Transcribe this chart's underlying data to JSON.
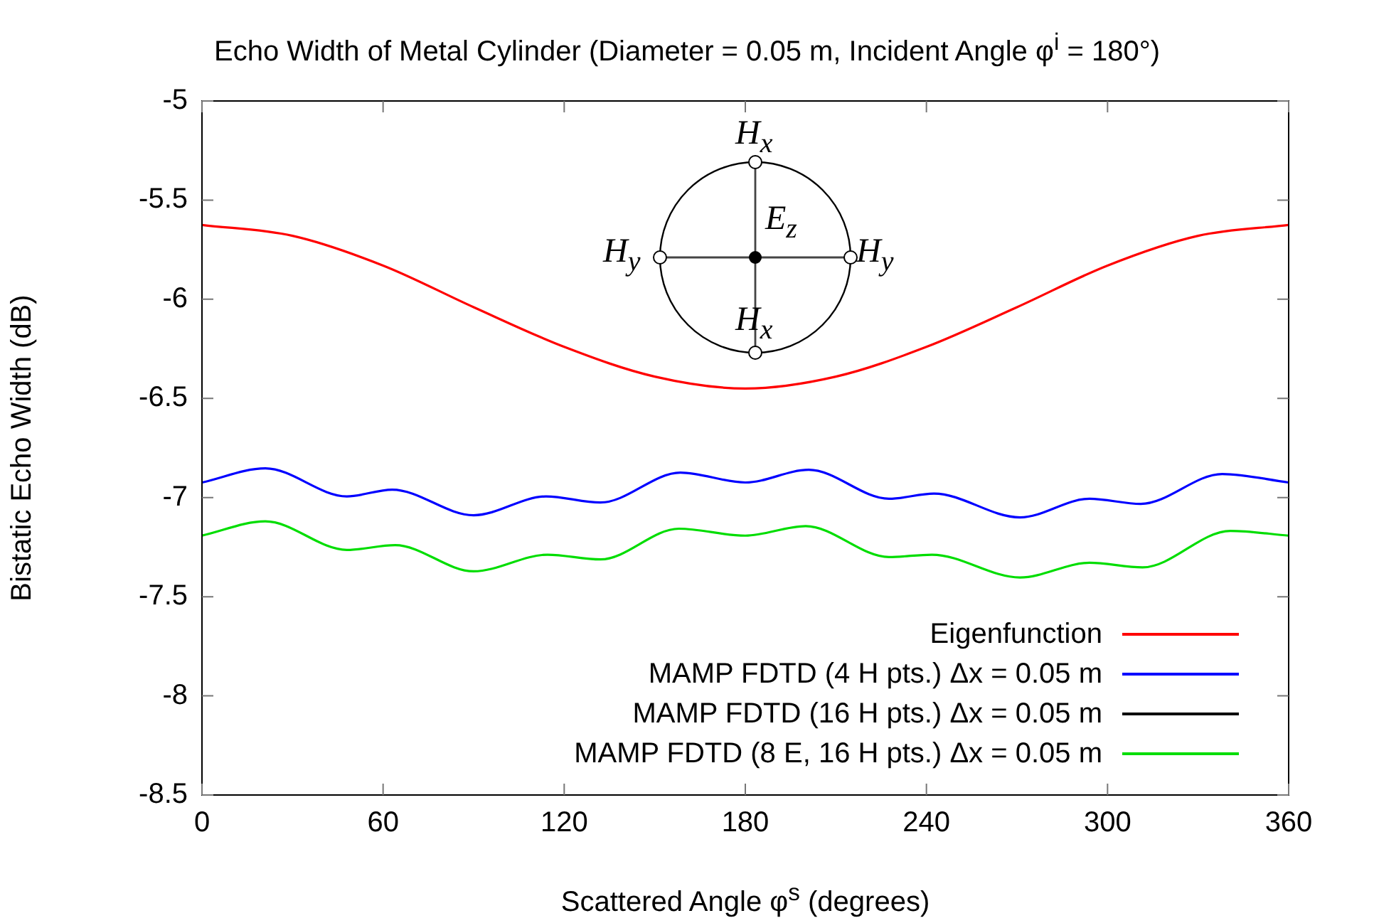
{
  "chart_data": {
    "type": "line",
    "title": "Echo Width of Metal Cylinder (Diameter = 0.05 m, Incident Angle φ$^{i}$ = 180°)",
    "xlabel": "Scattered Angle φ$^{s}$ (degrees)",
    "ylabel": "Bistatic Echo Width (dB)",
    "xlim": [
      0,
      360
    ],
    "xticks": [
      0,
      60,
      120,
      180,
      240,
      300,
      360
    ],
    "ylim": [
      -8.5,
      -5
    ],
    "yticks": [
      -8.5,
      -8,
      -7.5,
      -7,
      -6.5,
      -6,
      -5.5,
      -5
    ],
    "grid": false,
    "legend": "bottom right",
    "marker": "none",
    "line_style": "solid",
    "annotations": [
      "H$_{x}$",
      "H$_{y}$",
      "E$_{z}$",
      "H$_{y}$",
      "H$_{x}$"
    ],
    "series": [
      {
        "name": "Eigenfunction",
        "color": "#ff0000",
        "x": [
          0,
          30,
          60,
          90,
          120,
          150,
          180,
          210,
          240,
          270,
          300,
          330,
          360
        ],
        "values": [
          -5.625,
          -5.68,
          -5.83,
          -6.04,
          -6.24,
          -6.39,
          -6.45,
          -6.39,
          -6.24,
          -6.04,
          -5.83,
          -5.68,
          -5.625
        ]
      },
      {
        "name": "MAMP FDTD (4 H pts.) Δx = 0.05 m",
        "color": "#0000ff",
        "x": [
          0,
          21,
          48,
          63,
          90,
          114,
          132,
          158.5,
          180,
          201,
          227.6,
          242.5,
          271,
          294,
          311,
          338,
          360
        ],
        "values": [
          -6.924,
          -6.853,
          -6.994,
          -6.96,
          -7.089,
          -6.994,
          -7.025,
          -6.874,
          -6.924,
          -6.86,
          -7.006,
          -6.98,
          -7.1,
          -7.006,
          -7.032,
          -6.881,
          -6.924
        ]
      },
      {
        "name": "MAMP FDTD (16 H pts.) Δx = 0.05 m",
        "color": "#000000"
      },
      {
        "name": "MAMP FDTD (8 E, 16 H pts.) Δx = 0.05 m",
        "color": "#00dd00",
        "x": [
          0,
          21,
          48,
          64,
          90,
          114.5,
          132,
          158,
          180,
          200,
          227.6,
          241.8,
          271,
          294,
          311.6,
          340.7,
          360
        ],
        "values": [
          -7.192,
          -7.12,
          -7.264,
          -7.24,
          -7.372,
          -7.288,
          -7.312,
          -7.157,
          -7.192,
          -7.144,
          -7.3,
          -7.288,
          -7.403,
          -7.329,
          -7.352,
          -7.168,
          -7.192
        ]
      }
    ]
  }
}
